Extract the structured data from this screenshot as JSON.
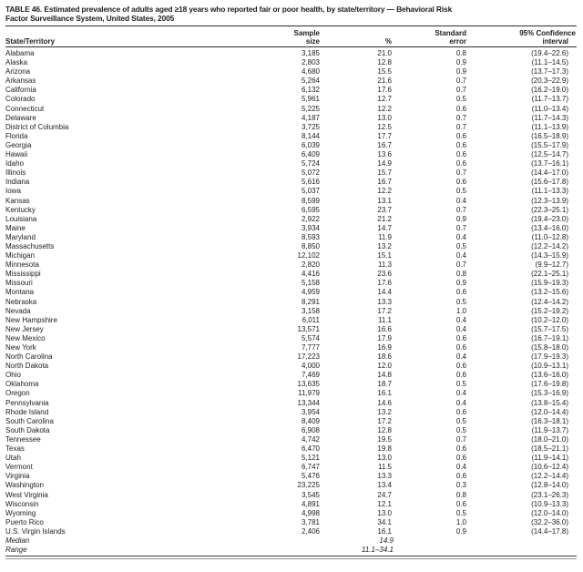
{
  "table": {
    "title_line1": "TABLE 46. Estimated prevalence of adults aged ≥18 years who reported fair or poor health, by state/territory — Behavioral Risk",
    "title_line2": "Factor Surveillance System, United States, 2005",
    "columns": {
      "state": "State/Territory",
      "sample": [
        "Sample",
        "size"
      ],
      "pct": "%",
      "std_error": [
        "Standard",
        "error"
      ],
      "confidence": [
        "95% Confidence",
        "interval"
      ]
    },
    "rows": [
      [
        "Alabama",
        "3,185",
        "21.0",
        "0.8",
        "(19.4–22.6)"
      ],
      [
        "Alaska",
        "2,803",
        "12.8",
        "0.9",
        "(11.1–14.5)"
      ],
      [
        "Arizona",
        "4,680",
        "15.5",
        "0.9",
        "(13.7–17.3)"
      ],
      [
        "Arkansas",
        "5,264",
        "21.6",
        "0.7",
        "(20.3–22.9)"
      ],
      [
        "California",
        "6,132",
        "17.6",
        "0.7",
        "(16.2–19.0)"
      ],
      [
        "Colorado",
        "5,961",
        "12.7",
        "0.5",
        "(11.7–13.7)"
      ],
      [
        "Connecticut",
        "5,225",
        "12.2",
        "0.6",
        "(11.0–13.4)"
      ],
      [
        "Delaware",
        "4,187",
        "13.0",
        "0.7",
        "(11.7–14.3)"
      ],
      [
        "District of Columbia",
        "3,725",
        "12.5",
        "0.7",
        "(11.1–13.9)"
      ],
      [
        "Florida",
        "8,144",
        "17.7",
        "0.6",
        "(16.5–18.9)"
      ],
      [
        "Georgia",
        "6,039",
        "16.7",
        "0.6",
        "(15.5–17.9)"
      ],
      [
        "Hawaii",
        "6,409",
        "13.6",
        "0.6",
        "(12.5–14.7)"
      ],
      [
        "Idaho",
        "5,724",
        "14.9",
        "0.6",
        "(13.7–16.1)"
      ],
      [
        "Illinois",
        "5,072",
        "15.7",
        "0.7",
        "(14.4–17.0)"
      ],
      [
        "Indiana",
        "5,616",
        "16.7",
        "0.6",
        "(15.6–17.8)"
      ],
      [
        "Iowa",
        "5,037",
        "12.2",
        "0.5",
        "(11.1–13.3)"
      ],
      [
        "Kansas",
        "8,599",
        "13.1",
        "0.4",
        "(12.3–13.9)"
      ],
      [
        "Kentucky",
        "6,595",
        "23.7",
        "0.7",
        "(22.3–25.1)"
      ],
      [
        "Louisiana",
        "2,922",
        "21.2",
        "0.9",
        "(19.4–23.0)"
      ],
      [
        "Maine",
        "3,934",
        "14.7",
        "0.7",
        "(13.4–16.0)"
      ],
      [
        "Maryland",
        "8,593",
        "11.9",
        "0.4",
        "(11.0–12.8)"
      ],
      [
        "Massachusetts",
        "8,850",
        "13.2",
        "0.5",
        "(12.2–14.2)"
      ],
      [
        "Michigan",
        "12,102",
        "15.1",
        "0.4",
        "(14.3–15.9)"
      ],
      [
        "Minnesota",
        "2,820",
        "11.3",
        "0.7",
        "(9.9–12.7)"
      ],
      [
        "Mississippi",
        "4,416",
        "23.6",
        "0.8",
        "(22.1–25.1)"
      ],
      [
        "Missouri",
        "5,158",
        "17.6",
        "0.9",
        "(15.9–19.3)"
      ],
      [
        "Montana",
        "4,959",
        "14.4",
        "0.6",
        "(13.2–15.6)"
      ],
      [
        "Nebraska",
        "8,291",
        "13.3",
        "0.5",
        "(12.4–14.2)"
      ],
      [
        "Nevada",
        "3,158",
        "17.2",
        "1.0",
        "(15.2–19.2)"
      ],
      [
        "New Hampshire",
        "6,011",
        "11.1",
        "0.4",
        "(10.2–12.0)"
      ],
      [
        "New Jersey",
        "13,571",
        "16.6",
        "0.4",
        "(15.7–17.5)"
      ],
      [
        "New Mexico",
        "5,574",
        "17.9",
        "0.6",
        "(16.7–19.1)"
      ],
      [
        "New York",
        "7,777",
        "16.9",
        "0.6",
        "(15.8–18.0)"
      ],
      [
        "North Carolina",
        "17,223",
        "18.6",
        "0.4",
        "(17.9–19.3)"
      ],
      [
        "North Dakota",
        "4,000",
        "12.0",
        "0.6",
        "(10.9–13.1)"
      ],
      [
        "Ohio",
        "7,469",
        "14.8",
        "0.6",
        "(13.6–16.0)"
      ],
      [
        "Oklahoma",
        "13,635",
        "18.7",
        "0.5",
        "(17.6–19.8)"
      ],
      [
        "Oregon",
        "11,979",
        "16.1",
        "0.4",
        "(15.3–16.9)"
      ],
      [
        "Pennsylvania",
        "13,344",
        "14.6",
        "0.4",
        "(13.8–15.4)"
      ],
      [
        "Rhode Island",
        "3,954",
        "13.2",
        "0.6",
        "(12.0–14.4)"
      ],
      [
        "South Carolina",
        "8,409",
        "17.2",
        "0.5",
        "(16.3–18.1)"
      ],
      [
        "South Dakota",
        "6,908",
        "12.8",
        "0.5",
        "(11.9–13.7)"
      ],
      [
        "Tennessee",
        "4,742",
        "19.5",
        "0.7",
        "(18.0–21.0)"
      ],
      [
        "Texas",
        "6,470",
        "19.8",
        "0.6",
        "(18.5–21.1)"
      ],
      [
        "Utah",
        "5,121",
        "13.0",
        "0.6",
        "(11.9–14.1)"
      ],
      [
        "Vermont",
        "6,747",
        "11.5",
        "0.4",
        "(10.6–12.4)"
      ],
      [
        "Virginia",
        "5,476",
        "13.3",
        "0.6",
        "(12.2–14.4)"
      ],
      [
        "Washington",
        "23,225",
        "13.4",
        "0.3",
        "(12.8–14.0)"
      ],
      [
        "West Virginia",
        "3,545",
        "24.7",
        "0.8",
        "(23.1–26.3)"
      ],
      [
        "Wisconsin",
        "4,891",
        "12.1",
        "0.6",
        "(10.9–13.3)"
      ],
      [
        "Wyoming",
        "4,998",
        "13.0",
        "0.5",
        "(12.0–14.0)"
      ],
      [
        "Puerto Rico",
        "3,781",
        "34.1",
        "1.0",
        "(32.2–36.0)"
      ],
      [
        "U.S. Virgin Islands",
        "2,406",
        "16.1",
        "0.9",
        "(14.4–17.8)"
      ]
    ],
    "summary_rows": [
      [
        "Median",
        "",
        "14.9",
        "",
        ""
      ],
      [
        "Range",
        "",
        "11.1–34.1",
        "",
        ""
      ]
    ]
  }
}
